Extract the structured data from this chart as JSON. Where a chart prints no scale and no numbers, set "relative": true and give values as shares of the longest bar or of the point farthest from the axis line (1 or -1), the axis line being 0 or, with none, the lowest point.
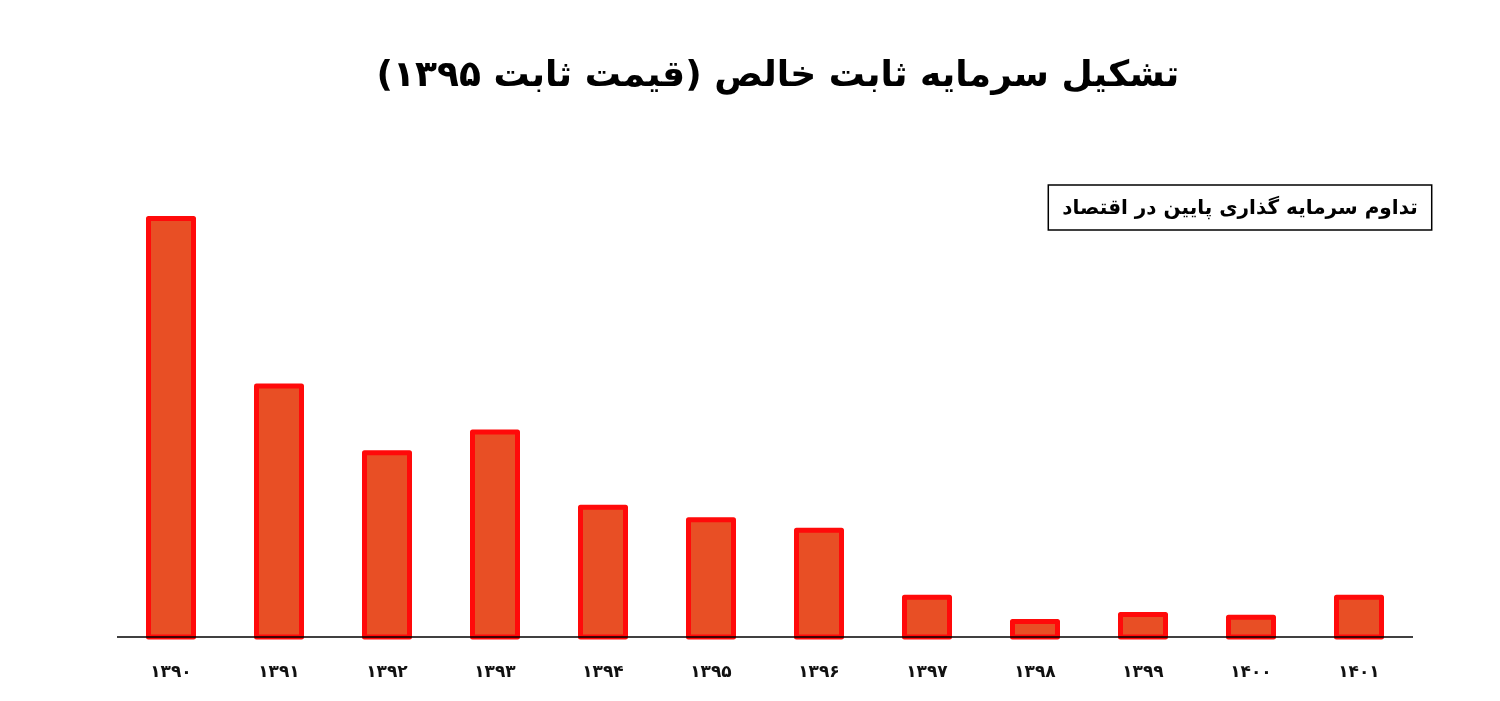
{
  "chart_data": {
    "type": "bar",
    "title": "تشکیل سرمایه ثابت خالص (قیمت ثابت ۱۳۹۵)",
    "annotations": [
      "تداوم سرمایه گذاری پایین در اقتصاد"
    ],
    "categories": [
      "۱۳۹۰",
      "۱۳۹۱",
      "۱۳۹۲",
      "۱۳۹۳",
      "۱۳۹۴",
      "۱۳۹۵",
      "۱۳۹۶",
      "۱۳۹۷",
      "۱۳۹۸",
      "۱۳۹۹",
      "۱۴۰۰",
      "۱۴۰۱"
    ],
    "values": [
      1,
      0.6,
      0.44,
      0.49,
      0.31,
      0.28,
      0.255,
      0.095,
      0.037,
      0.054,
      0.047,
      0.095
    ],
    "color": "#e84f25",
    "relative": true
  }
}
